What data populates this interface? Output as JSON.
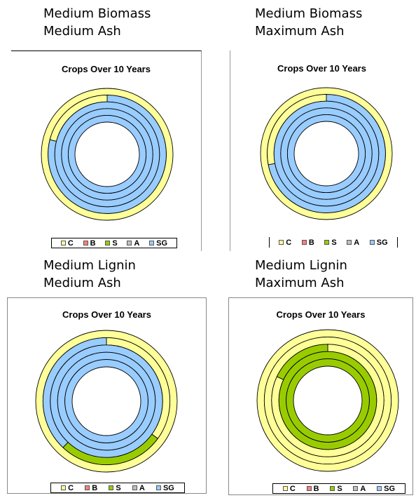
{
  "colors": {
    "C": "#ffff99",
    "B": "#ff8080",
    "S": "#99cc00",
    "A": "#c0c0c0",
    "SG": "#99ccff",
    "ring_stroke": "#000000"
  },
  "captions": [
    {
      "line1": "Medium Biomass",
      "line2": "Medium Ash"
    },
    {
      "line1": "Medium Biomass",
      "line2": "Maximum Ash"
    },
    {
      "line1": "Medium Lignin",
      "line2": "Medium Ash"
    },
    {
      "line1": "Medium Lignin",
      "line2": "Maximum Ash"
    }
  ],
  "chart_data": [
    {
      "type": "pie",
      "title": "Crops Over 10 Years",
      "legend": [
        "C",
        "B",
        "S",
        "A",
        "SG"
      ],
      "legend_position": "bottom",
      "rings": [
        [
          {
            "crop": "C",
            "value": 100
          }
        ],
        [
          {
            "crop": "SG",
            "value": 79
          },
          {
            "crop": "C",
            "value": 21
          }
        ],
        [
          {
            "crop": "SG",
            "value": 100
          }
        ],
        [
          {
            "crop": "SG",
            "value": 100
          }
        ],
        [
          {
            "crop": "SG",
            "value": 100
          }
        ]
      ]
    },
    {
      "type": "pie",
      "title": "Crops Over 10 Years",
      "legend": [
        "C",
        "B",
        "S",
        "A",
        "SG"
      ],
      "legend_position": "bottom",
      "rings": [
        [
          {
            "crop": "C",
            "value": 100
          }
        ],
        [
          {
            "crop": "SG",
            "value": 72
          },
          {
            "crop": "C",
            "value": 28
          }
        ],
        [
          {
            "crop": "SG",
            "value": 100
          }
        ],
        [
          {
            "crop": "SG",
            "value": 100
          }
        ],
        [
          {
            "crop": "SG",
            "value": 100
          }
        ]
      ]
    },
    {
      "type": "pie",
      "title": "Crops Over 10 Years",
      "legend": [
        "C",
        "B",
        "S",
        "A",
        "SG"
      ],
      "legend_position": "bottom",
      "rings": [
        [
          {
            "crop": "C",
            "value": 100
          }
        ],
        [
          {
            "crop": "C",
            "value": 35
          },
          {
            "crop": "S",
            "value": 27
          },
          {
            "crop": "SG",
            "value": 38
          }
        ],
        [
          {
            "crop": "SG",
            "value": 100
          }
        ],
        [
          {
            "crop": "SG",
            "value": 100
          }
        ],
        [
          {
            "crop": "SG",
            "value": 100
          }
        ]
      ]
    },
    {
      "type": "pie",
      "title": "Crops Over 10 Years",
      "legend": [
        "C",
        "B",
        "S",
        "A",
        "SG"
      ],
      "legend_position": "bottom",
      "rings": [
        [
          {
            "crop": "C",
            "value": 100
          }
        ],
        [
          {
            "crop": "C",
            "value": 100
          }
        ],
        [
          {
            "crop": "C",
            "value": 82
          },
          {
            "crop": "S",
            "value": 18
          }
        ],
        [
          {
            "crop": "S",
            "value": 100
          }
        ],
        [
          {
            "crop": "S",
            "value": 100
          }
        ]
      ]
    }
  ]
}
